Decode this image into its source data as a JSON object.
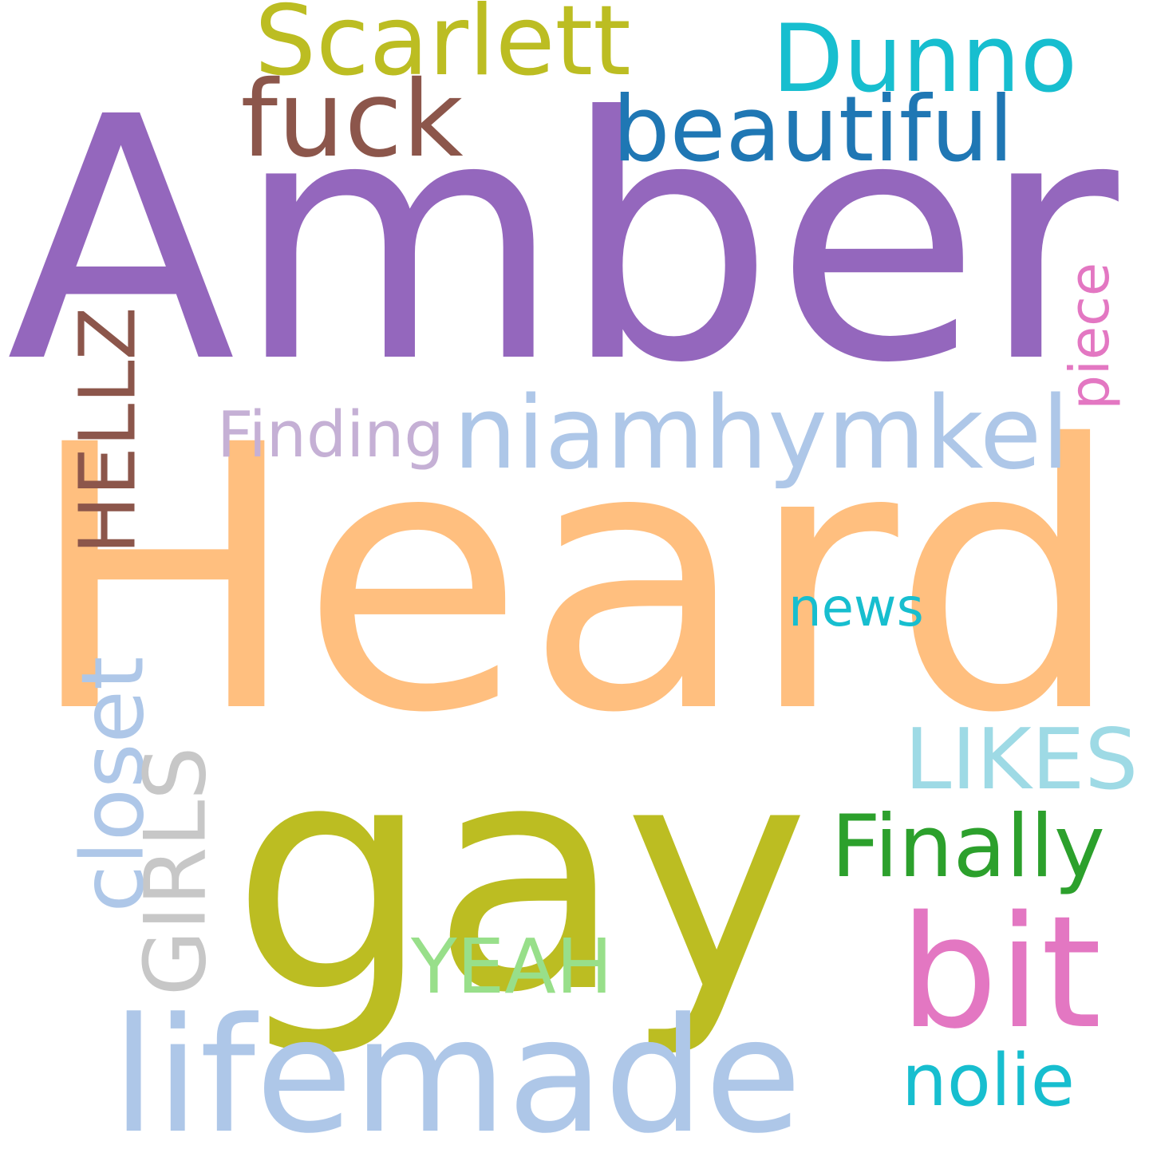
{
  "canvas": {
    "background": "#ffffff"
  },
  "words": [
    {
      "id": "amber",
      "text": "Amber",
      "color": "#9467bd",
      "orientation": "horizontal"
    },
    {
      "id": "heard",
      "text": "Heard",
      "color": "#ffbf7f",
      "orientation": "horizontal"
    },
    {
      "id": "gay",
      "text": "gay",
      "color": "#bcbd22",
      "orientation": "horizontal"
    },
    {
      "id": "lifemade",
      "text": "lifemade",
      "color": "#aec7e8",
      "orientation": "horizontal"
    },
    {
      "id": "niamhymkel",
      "text": "niamhymkel",
      "color": "#aec7e8",
      "orientation": "horizontal"
    },
    {
      "id": "scarlett",
      "text": "Scarlett",
      "color": "#bcbd22",
      "orientation": "horizontal"
    },
    {
      "id": "dunno",
      "text": "Dunno",
      "color": "#17becf",
      "orientation": "horizontal"
    },
    {
      "id": "fuck",
      "text": "fuck",
      "color": "#8c564b",
      "orientation": "horizontal"
    },
    {
      "id": "beautiful",
      "text": "beautiful",
      "color": "#1f77b4",
      "orientation": "horizontal"
    },
    {
      "id": "bit",
      "text": "bit",
      "color": "#e377c2",
      "orientation": "horizontal"
    },
    {
      "id": "closet",
      "text": "closet",
      "color": "#aec7e8",
      "orientation": "vertical"
    },
    {
      "id": "hellz",
      "text": "HELLZ",
      "color": "#8c564b",
      "orientation": "vertical"
    },
    {
      "id": "finally",
      "text": "Finally",
      "color": "#2ca02c",
      "orientation": "horizontal"
    },
    {
      "id": "likes",
      "text": "LIKES",
      "color": "#9edae5",
      "orientation": "horizontal"
    },
    {
      "id": "nolie",
      "text": "nolie",
      "color": "#17becf",
      "orientation": "horizontal"
    },
    {
      "id": "girls",
      "text": "GIRLS",
      "color": "#c7c7c7",
      "orientation": "vertical"
    },
    {
      "id": "yeah",
      "text": "YEAH",
      "color": "#98df8a",
      "orientation": "horizontal"
    },
    {
      "id": "finding",
      "text": "Finding",
      "color": "#c5b0d5",
      "orientation": "horizontal"
    },
    {
      "id": "piece",
      "text": "piece",
      "color": "#e377c2",
      "orientation": "vertical"
    },
    {
      "id": "news",
      "text": "news",
      "color": "#17becf",
      "orientation": "horizontal"
    }
  ]
}
